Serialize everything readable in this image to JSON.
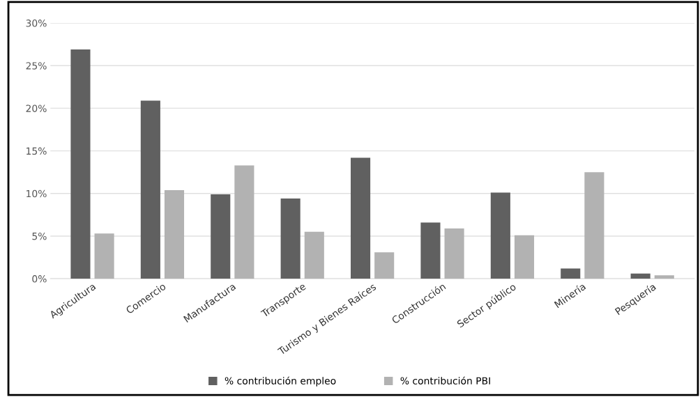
{
  "chart_data": {
    "type": "bar",
    "categories": [
      "Agricultura",
      "Comercio",
      "Manufactura",
      "Transporte",
      "Turismo y Bienes Raíces",
      "Construcción",
      "Sector público",
      "Minería",
      "Pesquería"
    ],
    "series": [
      {
        "name": "% contribución empleo",
        "color": "#606060",
        "values": [
          26.9,
          20.9,
          9.9,
          9.4,
          14.2,
          6.6,
          10.1,
          1.2,
          0.6
        ]
      },
      {
        "name": "% contribución PBI",
        "color": "#b2b2b2",
        "values": [
          5.3,
          10.4,
          13.3,
          5.5,
          3.1,
          5.9,
          5.1,
          12.5,
          0.4
        ]
      }
    ],
    "ylim": [
      0,
      30
    ],
    "yticks": [
      {
        "value": 0,
        "label": "0%"
      },
      {
        "value": 5,
        "label": "5%"
      },
      {
        "value": 10,
        "label": "10%"
      },
      {
        "value": 15,
        "label": "15%"
      },
      {
        "value": 20,
        "label": "20%"
      },
      {
        "value": 25,
        "label": "25%"
      },
      {
        "value": 30,
        "label": "30%"
      }
    ],
    "grid": "y",
    "legend": "bottom"
  }
}
